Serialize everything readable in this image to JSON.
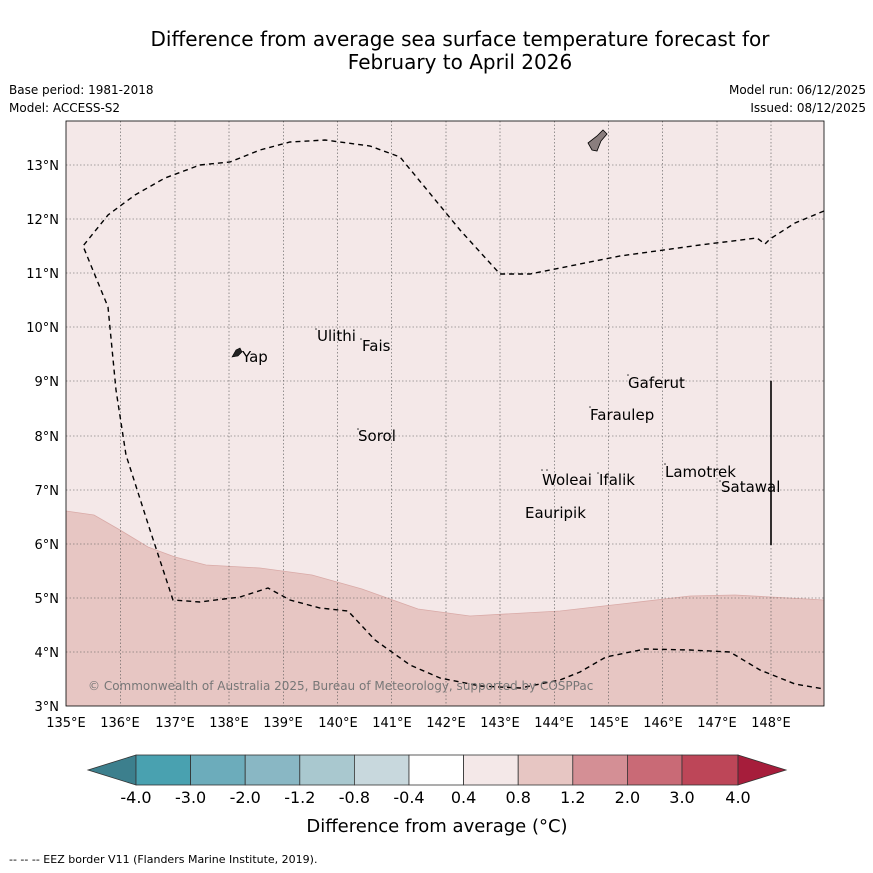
{
  "header": {
    "title_line1": "Difference from average sea surface temperature forecast for",
    "title_line2": "February to April 2026",
    "base_period": "Base period: 1981-2018",
    "model": "Model: ACCESS-S2",
    "model_run": "Model run: 06/12/2025",
    "issued": "Issued: 08/12/2025"
  },
  "map": {
    "lon_labels": [
      "135°E",
      "136°E",
      "137°E",
      "138°E",
      "139°E",
      "140°E",
      "141°E",
      "142°E",
      "143°E",
      "144°E",
      "145°E",
      "146°E",
      "147°E",
      "148°E"
    ],
    "lat_labels": [
      "3°N",
      "4°N",
      "5°N",
      "6°N",
      "7°N",
      "8°N",
      "9°N",
      "10°N",
      "11°N",
      "12°N",
      "13°N"
    ],
    "places": [
      "Yap",
      "Ulithi",
      "Fais",
      "Gaferut",
      "Faraulep",
      "Sorol",
      "Woleai",
      "Ifalik",
      "Lamotrek",
      "Satawal",
      "Eauripik"
    ],
    "copyright": "© Commonwealth of Australia 2025, Bureau of Meteorology, supported by COSPPac",
    "anomaly_colors": {
      "main": "#f4e8e8",
      "south": "#e7c6c3"
    }
  },
  "legend": {
    "labels": [
      "-4.0",
      "-3.0",
      "-2.0",
      "-1.2",
      "-0.8",
      "-0.4",
      "0.4",
      "0.8",
      "1.2",
      "2.0",
      "3.0",
      "4.0"
    ],
    "colors": [
      "#3c7f8d",
      "#49a1b0",
      "#6cacbb",
      "#89b7c4",
      "#a9c8cf",
      "#c8d8dd",
      "#ffffff",
      "#f4e8e8",
      "#e7c6c3",
      "#d48f95",
      "#c96a76",
      "#bd4658",
      "#a61d3b"
    ],
    "axis_label": "Difference from average (°C)"
  },
  "footnote": "--  --  -- EEZ border V11 (Flanders Marine Institute, 2019)."
}
